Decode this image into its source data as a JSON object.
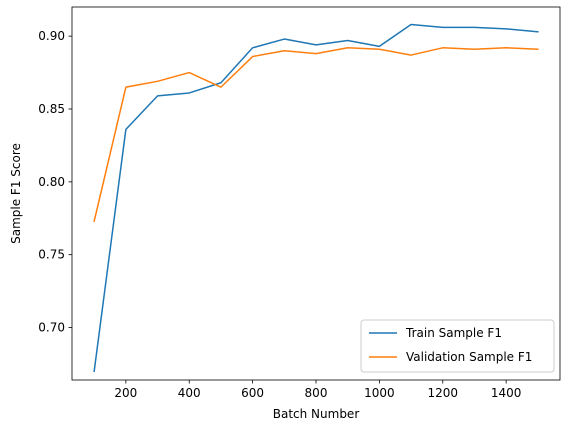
{
  "chart_data": {
    "type": "line",
    "title": "",
    "xlabel": "Batch Number",
    "ylabel": "Sample F1 Score",
    "xlim": [
      30,
      1570
    ],
    "ylim": [
      0.664,
      0.92
    ],
    "xticks": [
      200,
      400,
      600,
      800,
      1000,
      1200,
      1400
    ],
    "xtick_labels": [
      "200",
      "400",
      "600",
      "800",
      "1000",
      "1200",
      "1400"
    ],
    "yticks": [
      0.7,
      0.75,
      0.8,
      0.85,
      0.9
    ],
    "ytick_labels": [
      "0.70",
      "0.75",
      "0.80",
      "0.85",
      "0.90"
    ],
    "grid": false,
    "legend_position": "lower-right",
    "x": [
      100,
      200,
      300,
      400,
      500,
      600,
      700,
      800,
      900,
      1000,
      1100,
      1200,
      1300,
      1400,
      1500
    ],
    "series": [
      {
        "name": "Train Sample F1",
        "color": "#1f77b4",
        "values": [
          0.67,
          0.836,
          0.859,
          0.861,
          0.868,
          0.892,
          0.898,
          0.894,
          0.897,
          0.893,
          0.908,
          0.906,
          0.906,
          0.905,
          0.903
        ]
      },
      {
        "name": "Validation Sample F1",
        "color": "#ff7f0e",
        "values": [
          0.773,
          0.865,
          0.869,
          0.875,
          0.865,
          0.886,
          0.89,
          0.888,
          0.892,
          0.891,
          0.887,
          0.892,
          0.891,
          0.892,
          0.891
        ]
      }
    ]
  }
}
